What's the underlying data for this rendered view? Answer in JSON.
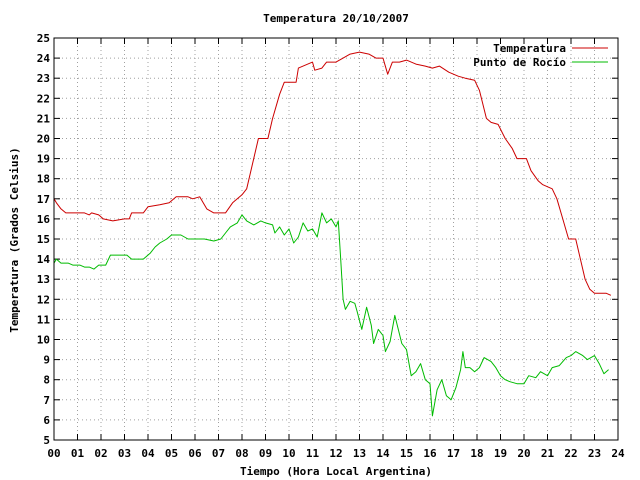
{
  "chart_data": {
    "type": "line",
    "title": "Temperatura 20/10/2007",
    "xlabel": "Tiempo (Hora Local Argentina)",
    "ylabel": "Temperatura (Grados Celsius)",
    "xlim": [
      0,
      24
    ],
    "ylim": [
      5,
      25
    ],
    "x_ticks": [
      {
        "value": 0,
        "label": "00"
      },
      {
        "value": 1,
        "label": "01"
      },
      {
        "value": 2,
        "label": "02"
      },
      {
        "value": 3,
        "label": "03"
      },
      {
        "value": 4,
        "label": "04"
      },
      {
        "value": 5,
        "label": "05"
      },
      {
        "value": 6,
        "label": "06"
      },
      {
        "value": 7,
        "label": "07"
      },
      {
        "value": 8,
        "label": "08"
      },
      {
        "value": 9,
        "label": "09"
      },
      {
        "value": 10,
        "label": "10"
      },
      {
        "value": 11,
        "label": "11"
      },
      {
        "value": 12,
        "label": "12"
      },
      {
        "value": 13,
        "label": "13"
      },
      {
        "value": 14,
        "label": "14"
      },
      {
        "value": 15,
        "label": "15"
      },
      {
        "value": 16,
        "label": "16"
      },
      {
        "value": 17,
        "label": "17"
      },
      {
        "value": 18,
        "label": "18"
      },
      {
        "value": 19,
        "label": "19"
      },
      {
        "value": 20,
        "label": "20"
      },
      {
        "value": 21,
        "label": "21"
      },
      {
        "value": 22,
        "label": "22"
      },
      {
        "value": 23,
        "label": "23"
      },
      {
        "value": 24,
        "label": "24"
      }
    ],
    "y_ticks": [
      {
        "value": 5,
        "label": "5"
      },
      {
        "value": 6,
        "label": "6"
      },
      {
        "value": 7,
        "label": "7"
      },
      {
        "value": 8,
        "label": "8"
      },
      {
        "value": 9,
        "label": "9"
      },
      {
        "value": 10,
        "label": "10"
      },
      {
        "value": 11,
        "label": "11"
      },
      {
        "value": 12,
        "label": "12"
      },
      {
        "value": 13,
        "label": "13"
      },
      {
        "value": 14,
        "label": "14"
      },
      {
        "value": 15,
        "label": "15"
      },
      {
        "value": 16,
        "label": "16"
      },
      {
        "value": 17,
        "label": "17"
      },
      {
        "value": 18,
        "label": "18"
      },
      {
        "value": 19,
        "label": "19"
      },
      {
        "value": 20,
        "label": "20"
      },
      {
        "value": 21,
        "label": "21"
      },
      {
        "value": 22,
        "label": "22"
      },
      {
        "value": 23,
        "label": "23"
      },
      {
        "value": 24,
        "label": "24"
      },
      {
        "value": 25,
        "label": "25"
      }
    ],
    "grid": true,
    "legend_position": "top-right",
    "series": [
      {
        "name": "Temperatura",
        "color": "#cc0000",
        "points": [
          [
            0.0,
            17.0
          ],
          [
            0.1,
            16.8
          ],
          [
            0.3,
            16.5
          ],
          [
            0.5,
            16.3
          ],
          [
            1.0,
            16.3
          ],
          [
            1.3,
            16.3
          ],
          [
            1.5,
            16.2
          ],
          [
            1.6,
            16.3
          ],
          [
            1.9,
            16.2
          ],
          [
            2.1,
            16.0
          ],
          [
            2.5,
            15.9
          ],
          [
            3.0,
            16.0
          ],
          [
            3.2,
            16.0
          ],
          [
            3.3,
            16.3
          ],
          [
            3.8,
            16.3
          ],
          [
            4.0,
            16.6
          ],
          [
            4.5,
            16.7
          ],
          [
            4.9,
            16.8
          ],
          [
            5.2,
            17.1
          ],
          [
            5.7,
            17.1
          ],
          [
            5.9,
            17.0
          ],
          [
            6.2,
            17.1
          ],
          [
            6.5,
            16.5
          ],
          [
            6.8,
            16.3
          ],
          [
            7.3,
            16.3
          ],
          [
            7.6,
            16.8
          ],
          [
            8.0,
            17.2
          ],
          [
            8.2,
            17.5
          ],
          [
            8.4,
            18.5
          ],
          [
            8.7,
            20.0
          ],
          [
            9.1,
            20.0
          ],
          [
            9.3,
            21.0
          ],
          [
            9.6,
            22.2
          ],
          [
            9.8,
            22.8
          ],
          [
            10.3,
            22.8
          ],
          [
            10.4,
            23.5
          ],
          [
            11.0,
            23.8
          ],
          [
            11.1,
            23.4
          ],
          [
            11.4,
            23.5
          ],
          [
            11.6,
            23.8
          ],
          [
            12.0,
            23.8
          ],
          [
            12.3,
            24.0
          ],
          [
            12.6,
            24.2
          ],
          [
            13.0,
            24.3
          ],
          [
            13.4,
            24.2
          ],
          [
            13.7,
            24.0
          ],
          [
            14.0,
            24.0
          ],
          [
            14.2,
            23.2
          ],
          [
            14.4,
            23.8
          ],
          [
            14.7,
            23.8
          ],
          [
            15.0,
            23.9
          ],
          [
            15.4,
            23.7
          ],
          [
            15.8,
            23.6
          ],
          [
            16.1,
            23.5
          ],
          [
            16.4,
            23.6
          ],
          [
            16.8,
            23.3
          ],
          [
            17.2,
            23.1
          ],
          [
            17.5,
            23.0
          ],
          [
            17.9,
            22.9
          ],
          [
            18.1,
            22.4
          ],
          [
            18.4,
            21.0
          ],
          [
            18.6,
            20.8
          ],
          [
            18.9,
            20.7
          ],
          [
            19.2,
            20.0
          ],
          [
            19.5,
            19.5
          ],
          [
            19.7,
            19.0
          ],
          [
            20.1,
            19.0
          ],
          [
            20.3,
            18.4
          ],
          [
            20.6,
            17.9
          ],
          [
            20.8,
            17.7
          ],
          [
            21.2,
            17.5
          ],
          [
            21.4,
            17.0
          ],
          [
            21.6,
            16.2
          ],
          [
            21.9,
            15.0
          ],
          [
            22.2,
            15.0
          ],
          [
            22.4,
            14.0
          ],
          [
            22.6,
            13.0
          ],
          [
            22.8,
            12.5
          ],
          [
            23.0,
            12.3
          ],
          [
            23.3,
            12.3
          ],
          [
            23.5,
            12.3
          ],
          [
            23.7,
            12.2
          ]
        ]
      },
      {
        "name": "Punto de Rocío",
        "color": "#00bb00",
        "points": [
          [
            0.0,
            13.8
          ],
          [
            0.1,
            14.0
          ],
          [
            0.3,
            13.8
          ],
          [
            0.6,
            13.8
          ],
          [
            0.8,
            13.7
          ],
          [
            1.1,
            13.7
          ],
          [
            1.3,
            13.6
          ],
          [
            1.5,
            13.6
          ],
          [
            1.7,
            13.5
          ],
          [
            1.9,
            13.7
          ],
          [
            2.2,
            13.7
          ],
          [
            2.4,
            14.2
          ],
          [
            2.7,
            14.2
          ],
          [
            3.1,
            14.2
          ],
          [
            3.3,
            14.0
          ],
          [
            3.8,
            14.0
          ],
          [
            4.1,
            14.3
          ],
          [
            4.3,
            14.6
          ],
          [
            4.5,
            14.8
          ],
          [
            4.8,
            15.0
          ],
          [
            5.0,
            15.2
          ],
          [
            5.4,
            15.2
          ],
          [
            5.7,
            15.0
          ],
          [
            6.0,
            15.0
          ],
          [
            6.4,
            15.0
          ],
          [
            6.8,
            14.9
          ],
          [
            7.1,
            15.0
          ],
          [
            7.3,
            15.3
          ],
          [
            7.5,
            15.6
          ],
          [
            7.8,
            15.8
          ],
          [
            8.0,
            16.2
          ],
          [
            8.2,
            15.9
          ],
          [
            8.5,
            15.7
          ],
          [
            8.8,
            15.9
          ],
          [
            9.0,
            15.8
          ],
          [
            9.3,
            15.7
          ],
          [
            9.4,
            15.3
          ],
          [
            9.6,
            15.6
          ],
          [
            9.8,
            15.2
          ],
          [
            10.0,
            15.5
          ],
          [
            10.2,
            14.8
          ],
          [
            10.4,
            15.1
          ],
          [
            10.6,
            15.8
          ],
          [
            10.8,
            15.4
          ],
          [
            11.0,
            15.5
          ],
          [
            11.2,
            15.1
          ],
          [
            11.4,
            16.3
          ],
          [
            11.6,
            15.8
          ],
          [
            11.8,
            16.0
          ],
          [
            12.0,
            15.6
          ],
          [
            12.1,
            15.9
          ],
          [
            12.2,
            14.0
          ],
          [
            12.3,
            12.0
          ],
          [
            12.4,
            11.5
          ],
          [
            12.6,
            11.9
          ],
          [
            12.8,
            11.8
          ],
          [
            12.9,
            11.4
          ],
          [
            13.1,
            10.5
          ],
          [
            13.3,
            11.6
          ],
          [
            13.5,
            10.7
          ],
          [
            13.6,
            9.8
          ],
          [
            13.8,
            10.5
          ],
          [
            14.0,
            10.2
          ],
          [
            14.1,
            9.4
          ],
          [
            14.3,
            9.9
          ],
          [
            14.5,
            11.2
          ],
          [
            14.8,
            9.8
          ],
          [
            15.0,
            9.5
          ],
          [
            15.2,
            8.2
          ],
          [
            15.4,
            8.4
          ],
          [
            15.6,
            8.8
          ],
          [
            15.8,
            8.0
          ],
          [
            16.0,
            7.8
          ],
          [
            16.1,
            6.2
          ],
          [
            16.3,
            7.5
          ],
          [
            16.5,
            8.0
          ],
          [
            16.7,
            7.2
          ],
          [
            16.9,
            7.0
          ],
          [
            17.1,
            7.6
          ],
          [
            17.3,
            8.5
          ],
          [
            17.4,
            9.4
          ],
          [
            17.5,
            8.6
          ],
          [
            17.7,
            8.6
          ],
          [
            17.9,
            8.4
          ],
          [
            18.1,
            8.6
          ],
          [
            18.3,
            9.1
          ],
          [
            18.6,
            8.9
          ],
          [
            18.8,
            8.6
          ],
          [
            19.0,
            8.2
          ],
          [
            19.2,
            8.0
          ],
          [
            19.4,
            7.9
          ],
          [
            19.7,
            7.8
          ],
          [
            20.0,
            7.8
          ],
          [
            20.2,
            8.2
          ],
          [
            20.5,
            8.1
          ],
          [
            20.7,
            8.4
          ],
          [
            21.0,
            8.2
          ],
          [
            21.2,
            8.6
          ],
          [
            21.5,
            8.7
          ],
          [
            21.8,
            9.1
          ],
          [
            22.0,
            9.2
          ],
          [
            22.2,
            9.4
          ],
          [
            22.5,
            9.2
          ],
          [
            22.7,
            9.0
          ],
          [
            23.0,
            9.2
          ],
          [
            23.2,
            8.8
          ],
          [
            23.4,
            8.3
          ],
          [
            23.6,
            8.5
          ]
        ]
      }
    ]
  }
}
